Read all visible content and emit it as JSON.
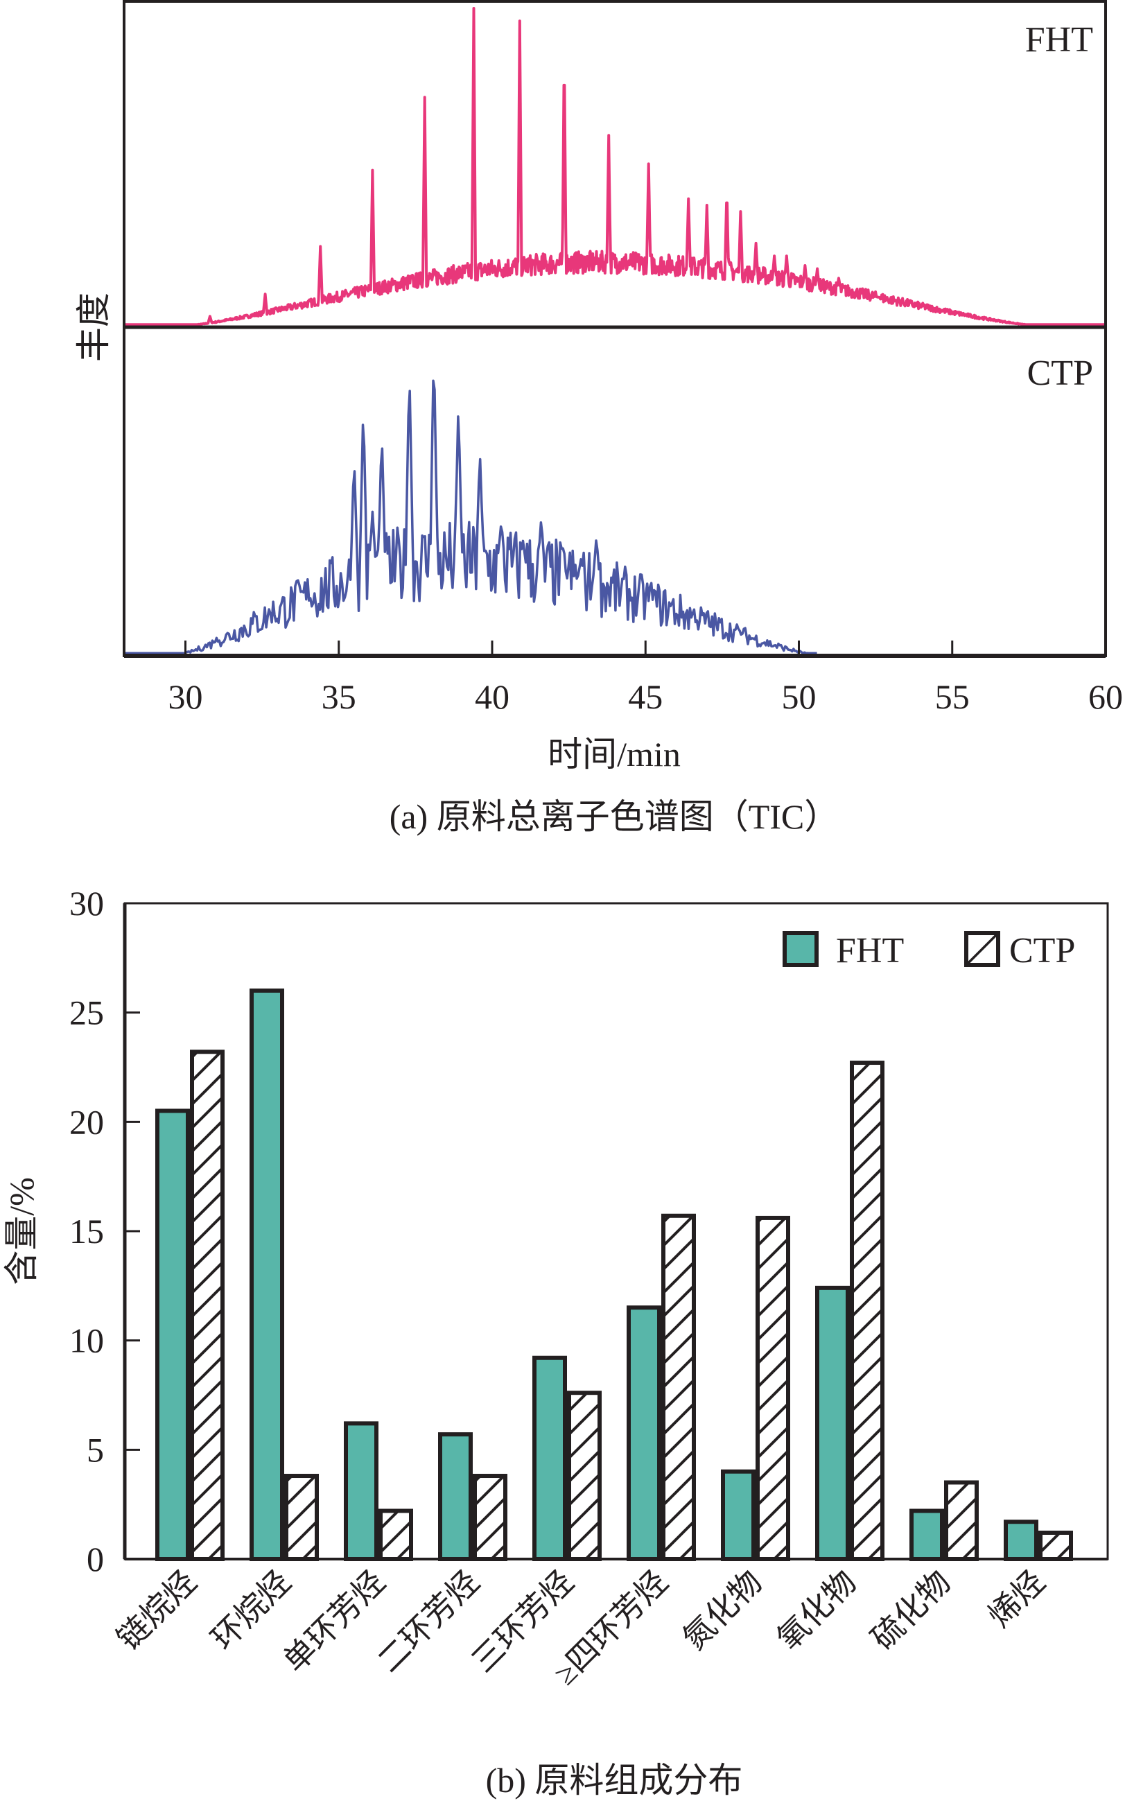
{
  "chart_data": [
    {
      "id": "a",
      "type": "line",
      "caption": "(a) 原料总离子色谱图（TIC）",
      "xlabel": "时间/min",
      "ylabel": "丰度",
      "xlim": [
        28,
        60
      ],
      "xticks": [
        30,
        35,
        40,
        45,
        50,
        55,
        60
      ],
      "xtick_labels": [
        "30",
        "35",
        "40",
        "45",
        "50",
        "55",
        "60"
      ],
      "yticks": [],
      "grid": false,
      "layout": "two stacked panels sharing x axis (FHT on top, CTP below)",
      "units_note": "relative abundance, normalized to the largest peak in each panel = 1.0",
      "panels": [
        {
          "name": "FHT",
          "label": "FHT",
          "color": "#e8377a",
          "baseline_hump": {
            "start": 30.0,
            "peak_time": 43.5,
            "end": 57.8,
            "peak_height": 0.2
          },
          "peaks": [
            {
              "t": 30.8,
              "h": 0.03
            },
            {
              "t": 32.6,
              "h": 0.1
            },
            {
              "t": 34.4,
              "h": 0.25
            },
            {
              "t": 36.1,
              "h": 0.49
            },
            {
              "t": 37.8,
              "h": 0.72
            },
            {
              "t": 39.4,
              "h": 1.0
            },
            {
              "t": 40.9,
              "h": 0.96
            },
            {
              "t": 42.35,
              "h": 0.87
            },
            {
              "t": 43.8,
              "h": 0.6
            },
            {
              "t": 45.1,
              "h": 0.51
            },
            {
              "t": 46.4,
              "h": 0.4
            },
            {
              "t": 47.0,
              "h": 0.38
            },
            {
              "t": 47.65,
              "h": 0.43
            },
            {
              "t": 48.1,
              "h": 0.36
            },
            {
              "t": 48.6,
              "h": 0.26
            },
            {
              "t": 49.2,
              "h": 0.22
            },
            {
              "t": 49.6,
              "h": 0.22
            },
            {
              "t": 50.2,
              "h": 0.19
            },
            {
              "t": 50.6,
              "h": 0.18
            },
            {
              "t": 51.3,
              "h": 0.15
            },
            {
              "t": 52.6,
              "h": 0.09
            }
          ]
        },
        {
          "name": "CTP",
          "label": "CTP",
          "color": "#4a57a3",
          "baseline_hump": {
            "start": 29.8,
            "peak_time": 38.5,
            "end": 50.5,
            "peak_height": 0.3
          },
          "peaks": [
            {
              "t": 31.0,
              "h": 0.04
            },
            {
              "t": 32.8,
              "h": 0.1
            },
            {
              "t": 34.0,
              "h": 0.17
            },
            {
              "t": 35.5,
              "h": 0.64
            },
            {
              "t": 35.8,
              "h": 0.81
            },
            {
              "t": 36.1,
              "h": 0.46
            },
            {
              "t": 36.4,
              "h": 0.72
            },
            {
              "t": 37.3,
              "h": 0.93
            },
            {
              "t": 38.1,
              "h": 1.0
            },
            {
              "t": 38.9,
              "h": 0.81
            },
            {
              "t": 39.6,
              "h": 0.66
            },
            {
              "t": 40.3,
              "h": 0.43
            },
            {
              "t": 41.0,
              "h": 0.37
            },
            {
              "t": 41.6,
              "h": 0.44
            },
            {
              "t": 42.3,
              "h": 0.35
            },
            {
              "t": 42.9,
              "h": 0.31
            },
            {
              "t": 43.4,
              "h": 0.38
            },
            {
              "t": 44.3,
              "h": 0.17
            },
            {
              "t": 45.2,
              "h": 0.18
            },
            {
              "t": 46.6,
              "h": 0.1
            },
            {
              "t": 48.0,
              "h": 0.05
            }
          ]
        }
      ]
    },
    {
      "id": "b",
      "type": "bar",
      "caption": "(b) 原料组成分布",
      "xlabel": "",
      "ylabel": "含量/%",
      "ylim": [
        0,
        30
      ],
      "yticks": [
        0,
        5,
        10,
        15,
        20,
        25,
        30
      ],
      "ytick_labels": [
        "0",
        "5",
        "10",
        "15",
        "20",
        "25",
        "30"
      ],
      "grid": false,
      "legend_position": "top-right",
      "categories": [
        "链烷烃",
        "环烷烃",
        "单环芳烃",
        "二环芳烃",
        "三环芳烃",
        "≥四环芳烃",
        "氮化物",
        "氧化物",
        "硫化物",
        "烯烃"
      ],
      "series": [
        {
          "name": "FHT",
          "style": "solid",
          "color": "#58b6a9",
          "values": [
            20.6,
            26.1,
            6.3,
            5.8,
            9.3,
            11.6,
            4.1,
            12.5,
            2.3,
            1.8
          ]
        },
        {
          "name": "CTP",
          "style": "hatched",
          "color": "#ffffff",
          "values": [
            23.3,
            3.9,
            2.3,
            3.9,
            7.7,
            15.8,
            15.7,
            22.8,
            3.6,
            1.3
          ]
        }
      ]
    }
  ]
}
